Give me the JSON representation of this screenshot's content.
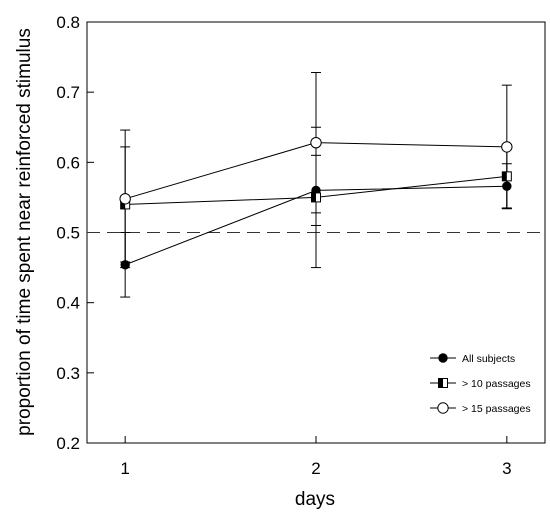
{
  "chart_data": {
    "type": "line",
    "title": "",
    "xlabel": "days",
    "ylabel": "proportion of time spent near reinforced stimulus",
    "x": [
      1,
      2,
      3
    ],
    "xlim": [
      0.8,
      3.2
    ],
    "ylim": [
      0.2,
      0.8
    ],
    "xticks": [
      1,
      2,
      3
    ],
    "yticks": [
      0.2,
      0.3,
      0.4,
      0.5,
      0.6,
      0.7,
      0.8
    ],
    "xtick_labels": [
      "1",
      "2",
      "3"
    ],
    "ytick_labels": [
      "0.2",
      "0.3",
      "0.4",
      "0.5",
      "0.6",
      "0.7",
      "0.8"
    ],
    "grid": false,
    "legend_position": "bottom-right",
    "reference_line": {
      "y": 0.5,
      "style": "dashed"
    },
    "series": [
      {
        "name": "All subjects",
        "marker": "filled-circle",
        "values": [
          0.454,
          0.56,
          0.566
        ],
        "error": [
          0.046,
          0.05,
          0.032
        ]
      },
      {
        "name": "> 10 passages",
        "marker": "half-filled-square",
        "values": [
          0.54,
          0.55,
          0.58
        ],
        "error": [
          0.082,
          0.1,
          0.045
        ]
      },
      {
        "name": "> 15 passages",
        "marker": "open-circle",
        "values": [
          0.548,
          0.628,
          0.622
        ],
        "error": [
          0.098,
          0.1,
          0.088
        ]
      }
    ]
  }
}
